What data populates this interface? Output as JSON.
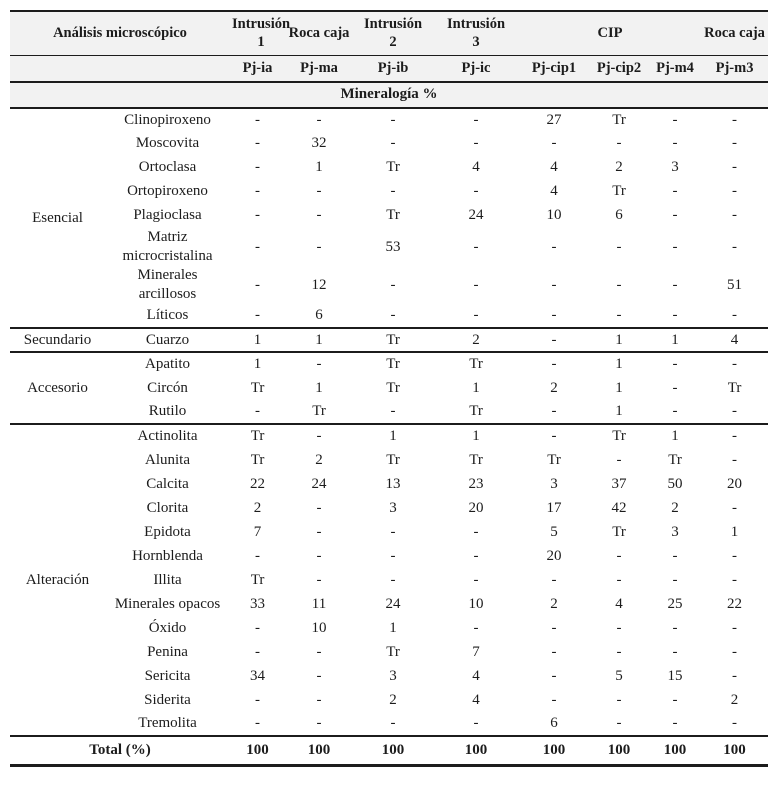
{
  "table": {
    "header": {
      "analysis_title": "Análisis microscópico",
      "group_cols": [
        "Intrusión 1",
        "Roca caja",
        "Intrusión 2",
        "Intrusión 3",
        "CIP",
        "Roca caja"
      ],
      "sample_ids": [
        "Pj-ia",
        "Pj-ma",
        "Pj-ib",
        "Pj-ic",
        "Pj-cip1",
        "Pj-cip2",
        "Pj-m4",
        "Pj-m3"
      ],
      "band_title": "Mineralogía %"
    },
    "sections": [
      {
        "group": "Esencial",
        "rows": [
          {
            "mineral": "Clinopiroxeno",
            "values": [
              "-",
              "-",
              "-",
              "-",
              "27",
              "Tr",
              "-",
              "-"
            ]
          },
          {
            "mineral": "Moscovita",
            "values": [
              "-",
              "32",
              "-",
              "-",
              "-",
              "-",
              "-",
              "-"
            ]
          },
          {
            "mineral": "Ortoclasa",
            "values": [
              "-",
              "1",
              "Tr",
              "4",
              "4",
              "2",
              "3",
              "-"
            ]
          },
          {
            "mineral": "Ortopiroxeno",
            "values": [
              "-",
              "-",
              "-",
              "-",
              "4",
              "Tr",
              "-",
              "-"
            ]
          },
          {
            "mineral": "Plagioclasa",
            "values": [
              "-",
              "-",
              "Tr",
              "24",
              "10",
              "6",
              "-",
              "-"
            ]
          },
          {
            "mineral": "Matriz microcristalina",
            "values": [
              "-",
              "-",
              "53",
              "-",
              "-",
              "-",
              "-",
              "-"
            ]
          },
          {
            "mineral": "Minerales arcillosos",
            "values": [
              "-",
              "12",
              "-",
              "-",
              "-",
              "-",
              "-",
              "51"
            ]
          },
          {
            "mineral": "Líticos",
            "values": [
              "-",
              "6",
              "-",
              "-",
              "-",
              "-",
              "-",
              "-"
            ]
          }
        ]
      },
      {
        "group": "Secundario",
        "rows": [
          {
            "mineral": "Cuarzo",
            "values": [
              "1",
              "1",
              "Tr",
              "2",
              "-",
              "1",
              "1",
              "4"
            ]
          }
        ]
      },
      {
        "group": "Accesorio",
        "rows": [
          {
            "mineral": "Apatito",
            "values": [
              "1",
              "-",
              "Tr",
              "Tr",
              "-",
              "1",
              "-",
              "-"
            ]
          },
          {
            "mineral": "Circón",
            "values": [
              "Tr",
              "1",
              "Tr",
              "1",
              "2",
              "1",
              "-",
              "Tr"
            ]
          },
          {
            "mineral": "Rutilo",
            "values": [
              "-",
              "Tr",
              "-",
              "Tr",
              "-",
              "1",
              "-",
              "-"
            ]
          }
        ]
      },
      {
        "group": "Alteración",
        "rows": [
          {
            "mineral": "Actinolita",
            "values": [
              "Tr",
              "-",
              "1",
              "1",
              "-",
              "Tr",
              "1",
              "-"
            ]
          },
          {
            "mineral": "Alunita",
            "values": [
              "Tr",
              "2",
              "Tr",
              "Tr",
              "Tr",
              "-",
              "Tr",
              "-"
            ]
          },
          {
            "mineral": "Calcita",
            "values": [
              "22",
              "24",
              "13",
              "23",
              "3",
              "37",
              "50",
              "20"
            ]
          },
          {
            "mineral": "Clorita",
            "values": [
              "2",
              "-",
              "3",
              "20",
              "17",
              "42",
              "2",
              "-"
            ]
          },
          {
            "mineral": "Epidota",
            "values": [
              "7",
              "-",
              "-",
              "-",
              "5",
              "Tr",
              "3",
              "1"
            ]
          },
          {
            "mineral": "Hornblenda",
            "values": [
              "-",
              "-",
              "-",
              "-",
              "20",
              "-",
              "-",
              "-"
            ]
          },
          {
            "mineral": "Illita",
            "values": [
              "Tr",
              "-",
              "-",
              "-",
              "-",
              "-",
              "-",
              "-"
            ]
          },
          {
            "mineral": "Minerales opacos",
            "values": [
              "33",
              "11",
              "24",
              "10",
              "2",
              "4",
              "25",
              "22"
            ]
          },
          {
            "mineral": "Óxido",
            "values": [
              "-",
              "10",
              "1",
              "-",
              "-",
              "-",
              "-",
              "-"
            ]
          },
          {
            "mineral": "Penina",
            "values": [
              "-",
              "-",
              "Tr",
              "7",
              "-",
              "-",
              "-",
              "-"
            ]
          },
          {
            "mineral": "Sericita",
            "values": [
              "34",
              "-",
              "3",
              "4",
              "-",
              "5",
              "15",
              "-"
            ]
          },
          {
            "mineral": "Siderita",
            "values": [
              "-",
              "-",
              "2",
              "4",
              "-",
              "-",
              "-",
              "2"
            ]
          },
          {
            "mineral": "Tremolita",
            "values": [
              "-",
              "-",
              "-",
              "-",
              "6",
              "-",
              "-",
              "-"
            ]
          }
        ]
      }
    ],
    "total": {
      "label": "Total (%)",
      "values": [
        "100",
        "100",
        "100",
        "100",
        "100",
        "100",
        "100",
        "100"
      ]
    }
  }
}
